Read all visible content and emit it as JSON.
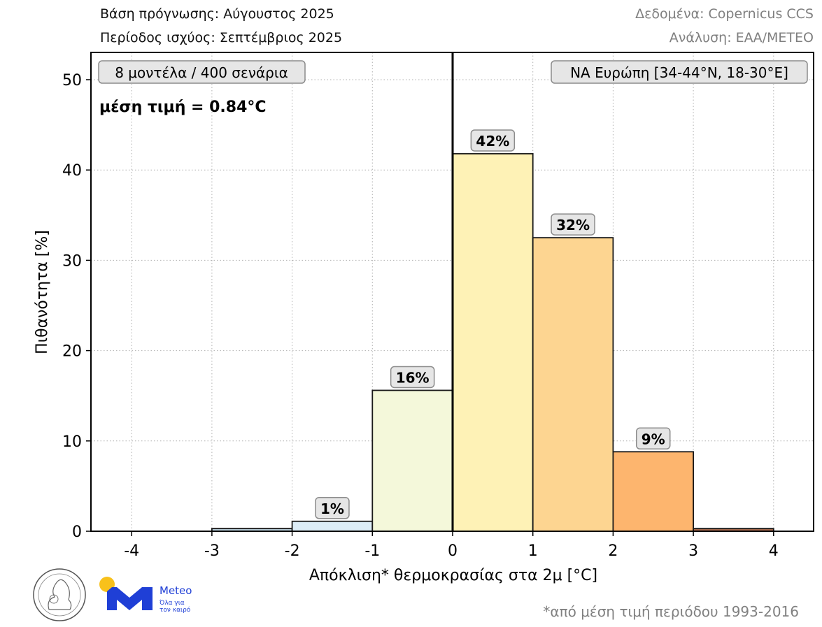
{
  "header": {
    "left_line1": "Βάση πρόγνωσης: Αύγουστος 2025",
    "left_line2": "Περίοδος ισχύος: Σεπτέμβριος 2025",
    "right_line1": "Δεδομένα: Copernicus CCS",
    "right_line2": "Ανάλυση: ΕΑΑ/METEO"
  },
  "annotations": {
    "models_box": "8 μοντέλα / 400 σενάρια",
    "mean_value": "μέση τιμή = 0.84°C",
    "region_box": "ΝΑ Ευρώπη [34-44°N, 18-30°E]"
  },
  "footer": {
    "footnote": "*από μέση τιμή περιόδου 1993-2016",
    "meteo_brand": "Meteo",
    "meteo_tagline_1": "Όλα για",
    "meteo_tagline_2": "τον καιρό",
    "observatory_logo": "National Observatory of Athens seal"
  },
  "colors": {
    "bar_m3_m2": "#b7ccd8",
    "bar_m2_m1": "#dcedf7",
    "bar_m1_0": "#f4f8da",
    "bar_0_1": "#fef2b6",
    "bar_1_2": "#fdd591",
    "bar_2_3": "#fdb56e",
    "bar_3_4": "#a86a4e",
    "label_box_bg": "#e6e6e6",
    "label_box_border": "#8c8c8c",
    "meteo_blue": "#1f3fd6",
    "meteo_yellow": "#f8c11b",
    "grey_text": "#808080"
  },
  "chart_data": {
    "type": "bar",
    "title": "",
    "xlabel": "Απόκλιση* θερμοκρασίας στα 2μ [°C]",
    "ylabel": "Πιθανότητα [%]",
    "xlim": [
      -4.5,
      4.5
    ],
    "ylim": [
      0,
      53
    ],
    "grid": true,
    "x_ticks": [
      -4,
      -3,
      -2,
      -1,
      0,
      1,
      2,
      3,
      4
    ],
    "y_ticks": [
      0,
      10,
      20,
      30,
      40,
      50
    ],
    "bins": [
      {
        "from": -3,
        "to": -2,
        "value": 0.3,
        "label": ""
      },
      {
        "from": -2,
        "to": -1,
        "value": 1.1,
        "label": "1%"
      },
      {
        "from": -1,
        "to": 0,
        "value": 15.6,
        "label": "16%"
      },
      {
        "from": 0,
        "to": 1,
        "value": 41.8,
        "label": "42%"
      },
      {
        "from": 1,
        "to": 2,
        "value": 32.5,
        "label": "32%"
      },
      {
        "from": 2,
        "to": 3,
        "value": 8.8,
        "label": "9%"
      },
      {
        "from": 3,
        "to": 4,
        "value": 0.3,
        "label": ""
      }
    ],
    "categories": [
      "-3 to -2",
      "-2 to -1",
      "-1 to 0",
      "0 to 1",
      "1 to 2",
      "2 to 3",
      "3 to 4"
    ],
    "values": [
      0.3,
      1.1,
      15.6,
      41.8,
      32.5,
      8.8,
      0.3
    ],
    "mean": 0.84,
    "vertical_line_x": 0
  }
}
